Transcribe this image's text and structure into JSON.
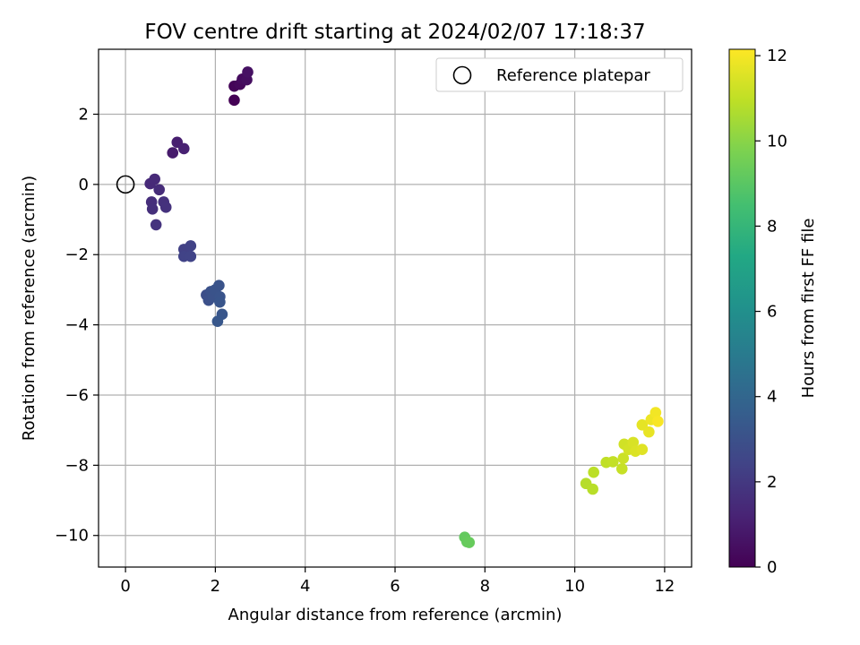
{
  "chart_data": {
    "type": "scatter",
    "title": "FOV centre drift starting at 2024/02/07 17:18:37",
    "xlabel": "Angular distance from reference (arcmin)",
    "ylabel": "Rotation from reference (arcmin)",
    "xlim": [
      -0.6,
      12.6
    ],
    "ylim": [
      -10.9,
      3.85
    ],
    "x_ticks": [
      0,
      2,
      4,
      6,
      8,
      10,
      12
    ],
    "x_tick_labels": [
      "0",
      "2",
      "4",
      "6",
      "8",
      "10",
      "12"
    ],
    "y_ticks": [
      -10,
      -8,
      -6,
      -4,
      -2,
      0,
      2
    ],
    "y_tick_labels": [
      "−10",
      "−8",
      "−6",
      "−4",
      "−2",
      "0",
      "2"
    ],
    "grid": true,
    "legend": {
      "placement": "top-right",
      "entries": [
        {
          "label": "Reference platepar",
          "marker": "open-circle"
        }
      ]
    },
    "reference_point": {
      "x": 0,
      "y": 0
    },
    "colorbar": {
      "label": "Hours from first FF file",
      "colormap": "viridis",
      "range": [
        0,
        12.15
      ],
      "ticks": [
        0,
        2,
        4,
        6,
        8,
        10,
        12
      ],
      "tick_labels": [
        "0",
        "2",
        "4",
        "6",
        "8",
        "10",
        "12"
      ]
    },
    "points": [
      {
        "x": 2.42,
        "y": 2.4,
        "hours": 0.05
      },
      {
        "x": 2.42,
        "y": 2.8,
        "hours": 0.15
      },
      {
        "x": 2.55,
        "y": 2.85,
        "hours": 0.25
      },
      {
        "x": 2.6,
        "y": 3.0,
        "hours": 0.35
      },
      {
        "x": 2.7,
        "y": 2.98,
        "hours": 0.45
      },
      {
        "x": 2.72,
        "y": 3.2,
        "hours": 0.55
      },
      {
        "x": 1.05,
        "y": 0.9,
        "hours": 0.9
      },
      {
        "x": 1.15,
        "y": 1.2,
        "hours": 1.0
      },
      {
        "x": 1.3,
        "y": 1.02,
        "hours": 1.1
      },
      {
        "x": 0.55,
        "y": 0.02,
        "hours": 1.4
      },
      {
        "x": 0.65,
        "y": 0.15,
        "hours": 1.45
      },
      {
        "x": 0.75,
        "y": -0.15,
        "hours": 1.5
      },
      {
        "x": 0.58,
        "y": -0.5,
        "hours": 1.6
      },
      {
        "x": 0.6,
        "y": -0.7,
        "hours": 1.65
      },
      {
        "x": 0.85,
        "y": -0.5,
        "hours": 1.7
      },
      {
        "x": 0.9,
        "y": -0.65,
        "hours": 1.75
      },
      {
        "x": 0.68,
        "y": -1.15,
        "hours": 1.8
      },
      {
        "x": 1.3,
        "y": -1.85,
        "hours": 2.3
      },
      {
        "x": 1.45,
        "y": -1.75,
        "hours": 2.35
      },
      {
        "x": 1.3,
        "y": -2.05,
        "hours": 2.4
      },
      {
        "x": 1.45,
        "y": -2.05,
        "hours": 2.45
      },
      {
        "x": 1.8,
        "y": -3.15,
        "hours": 2.9
      },
      {
        "x": 1.85,
        "y": -3.3,
        "hours": 2.95
      },
      {
        "x": 1.9,
        "y": -3.05,
        "hours": 3.0
      },
      {
        "x": 1.95,
        "y": -3.2,
        "hours": 3.05
      },
      {
        "x": 2.0,
        "y": -3.0,
        "hours": 3.1
      },
      {
        "x": 2.08,
        "y": -2.88,
        "hours": 3.1
      },
      {
        "x": 2.1,
        "y": -3.2,
        "hours": 3.15
      },
      {
        "x": 2.1,
        "y": -3.35,
        "hours": 3.2
      },
      {
        "x": 2.15,
        "y": -3.7,
        "hours": 3.25
      },
      {
        "x": 2.05,
        "y": -3.9,
        "hours": 3.3
      },
      {
        "x": 7.55,
        "y": -10.05,
        "hours": 9.2
      },
      {
        "x": 7.6,
        "y": -10.18,
        "hours": 9.25
      },
      {
        "x": 7.65,
        "y": -10.2,
        "hours": 9.3
      },
      {
        "x": 10.25,
        "y": -8.52,
        "hours": 10.8
      },
      {
        "x": 10.4,
        "y": -8.68,
        "hours": 10.85
      },
      {
        "x": 10.42,
        "y": -8.2,
        "hours": 10.9
      },
      {
        "x": 10.7,
        "y": -7.92,
        "hours": 11.0
      },
      {
        "x": 10.85,
        "y": -7.9,
        "hours": 11.05
      },
      {
        "x": 11.05,
        "y": -8.1,
        "hours": 11.1
      },
      {
        "x": 11.08,
        "y": -7.8,
        "hours": 11.2
      },
      {
        "x": 11.1,
        "y": -7.4,
        "hours": 11.3
      },
      {
        "x": 11.2,
        "y": -7.55,
        "hours": 11.35
      },
      {
        "x": 11.3,
        "y": -7.35,
        "hours": 11.45
      },
      {
        "x": 11.35,
        "y": -7.6,
        "hours": 11.5
      },
      {
        "x": 11.5,
        "y": -7.55,
        "hours": 11.6
      },
      {
        "x": 11.5,
        "y": -6.85,
        "hours": 11.7
      },
      {
        "x": 11.65,
        "y": -7.05,
        "hours": 11.75
      },
      {
        "x": 11.7,
        "y": -6.7,
        "hours": 11.85
      },
      {
        "x": 11.8,
        "y": -6.5,
        "hours": 11.95
      },
      {
        "x": 11.85,
        "y": -6.75,
        "hours": 12.05
      }
    ]
  }
}
